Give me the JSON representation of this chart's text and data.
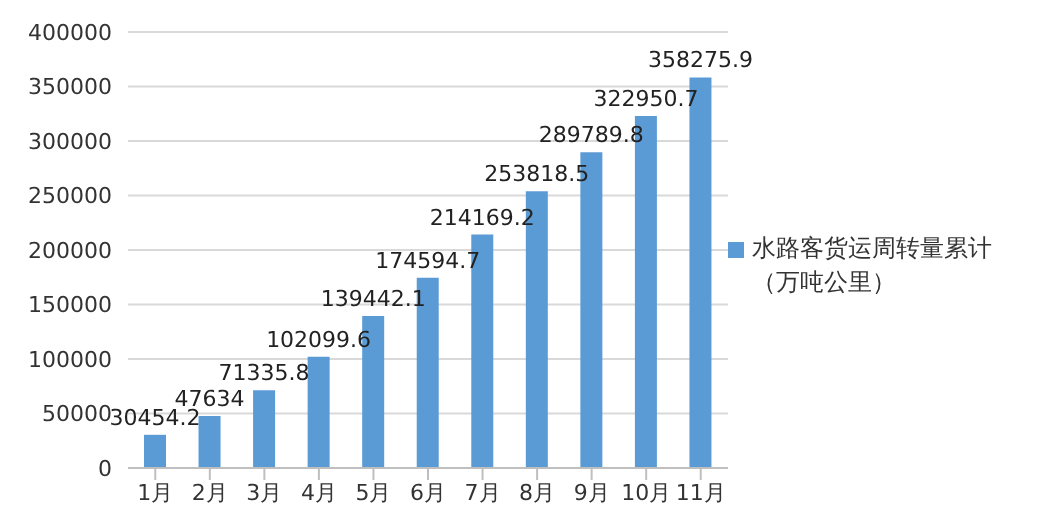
{
  "chart_data": {
    "type": "bar",
    "categories": [
      "1月",
      "2月",
      "3月",
      "4月",
      "5月",
      "6月",
      "7月",
      "8月",
      "9月",
      "10月",
      "11月"
    ],
    "series": [
      {
        "name": "水路客货运周转量累计（万吨公里）",
        "color": "#5b9bd5",
        "values": [
          30454.2,
          47634,
          71335.8,
          102099.6,
          139442.1,
          174594.7,
          214169.2,
          253818.5,
          289789.8,
          322950.7,
          358275.9
        ]
      }
    ],
    "ylim": [
      0,
      400000
    ],
    "yticks": [
      0,
      50000,
      100000,
      150000,
      200000,
      250000,
      300000,
      350000,
      400000
    ],
    "grid": "y",
    "legend": "right",
    "data_labels": true
  }
}
